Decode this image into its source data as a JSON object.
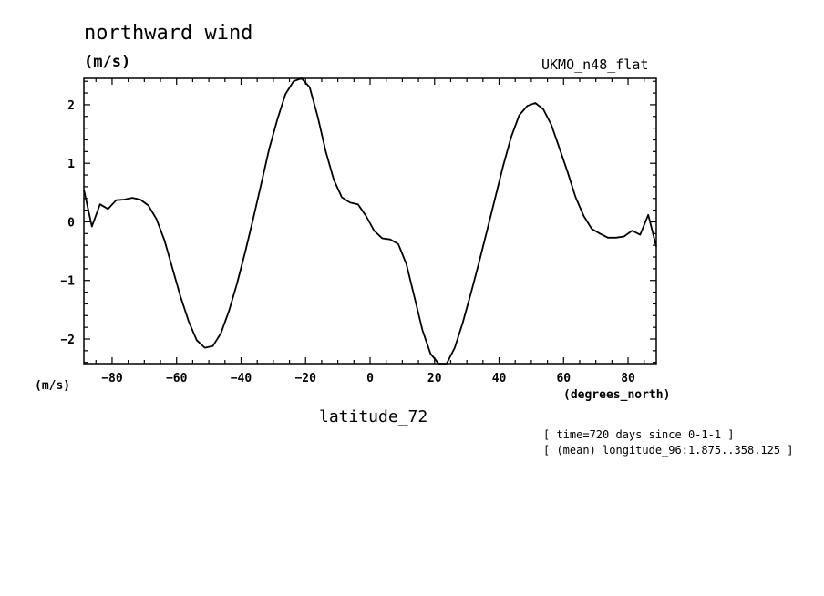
{
  "header": {
    "title": "northward wind",
    "units": "(m/s)",
    "source": "UKMO_n48_flat"
  },
  "axes": {
    "y_units": "(m/s)",
    "x_units": "(degrees_north)",
    "x_label": "latitude_72"
  },
  "notes": [
    "[ time=720 days since 0-1-1 ]",
    "[ (mean) longitude_96:1.875..358.125 ]"
  ],
  "chart_data": {
    "type": "line",
    "title": "northward wind",
    "xlabel": "latitude_72",
    "ylabel": "(m/s)",
    "xlim": [
      -88.75,
      88.75
    ],
    "ylim": [
      -2.42,
      2.45
    ],
    "xticks": [
      -80,
      -60,
      -40,
      -20,
      0,
      20,
      40,
      60,
      80
    ],
    "xtick_labels": [
      "-80",
      "-60",
      "-40",
      "-20",
      "0",
      "20",
      "40",
      "60",
      "80"
    ],
    "yticks": [
      -2,
      -1,
      0,
      1,
      2
    ],
    "ytick_labels": [
      "-2",
      "-1",
      "0",
      "1",
      "2"
    ],
    "grid": false,
    "series": [
      {
        "x": [
          -88.75,
          -86.25,
          -83.75,
          -81.25,
          -78.75,
          -76.25,
          -73.75,
          -71.25,
          -68.75,
          -66.25,
          -63.75,
          -61.25,
          -58.75,
          -56.25,
          -53.75,
          -51.25,
          -48.75,
          -46.25,
          -43.75,
          -41.25,
          -38.75,
          -36.25,
          -33.75,
          -31.25,
          -28.75,
          -26.25,
          -23.75,
          -21.25,
          -18.75,
          -16.25,
          -13.75,
          -11.25,
          -8.75,
          -6.25,
          -3.75,
          -1.25,
          1.25,
          3.75,
          6.25,
          8.75,
          11.25,
          13.75,
          16.25,
          18.75,
          21.25,
          23.75,
          26.25,
          28.75,
          31.25,
          33.75,
          36.25,
          38.75,
          41.25,
          43.75,
          46.25,
          48.75,
          51.25,
          53.75,
          56.25,
          58.75,
          61.25,
          63.75,
          66.25,
          68.75,
          71.25,
          73.75,
          76.25,
          78.75,
          81.25,
          83.75,
          86.25,
          88.75
        ],
        "y": [
          0.55,
          -0.08,
          0.3,
          0.22,
          0.37,
          0.38,
          0.41,
          0.38,
          0.28,
          0.05,
          -0.32,
          -0.8,
          -1.28,
          -1.7,
          -2.02,
          -2.15,
          -2.12,
          -1.9,
          -1.52,
          -1.05,
          -0.52,
          0.05,
          0.65,
          1.25,
          1.75,
          2.18,
          2.4,
          2.45,
          2.3,
          1.8,
          1.2,
          0.72,
          0.42,
          0.33,
          0.3,
          0.1,
          -0.15,
          -0.28,
          -0.3,
          -0.38,
          -0.72,
          -1.28,
          -1.85,
          -2.25,
          -2.42,
          -2.42,
          -2.15,
          -1.72,
          -1.22,
          -0.7,
          -0.15,
          0.4,
          0.95,
          1.45,
          1.82,
          1.98,
          2.03,
          1.92,
          1.65,
          1.25,
          0.85,
          0.42,
          0.1,
          -0.12,
          -0.2,
          -0.27,
          -0.27,
          -0.25,
          -0.15,
          -0.22,
          0.12,
          -0.42
        ]
      }
    ]
  }
}
